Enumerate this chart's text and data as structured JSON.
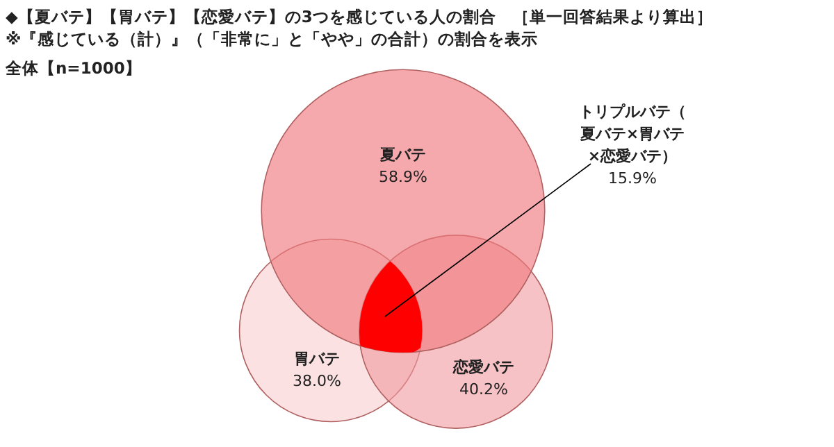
{
  "chart_data": {
    "type": "other",
    "title": "◆【夏バテ】【胃バテ】【恋愛バテ】の3つを感じている人の割合　［単一回答結果より算出］",
    "subtitle": "※『感じている（計）』（「非常に」と「やや」の合計）の割合を表示",
    "annotations": [
      "全体【n=1000】"
    ],
    "categories": [
      "夏バテ",
      "胃バテ",
      "恋愛バテ",
      "トリプルバテ（夏バテ×胃バテ×恋愛バテ）"
    ],
    "values": [
      58.9,
      38.0,
      40.2,
      15.9
    ],
    "value_labels": [
      "58.9%",
      "38.0%",
      "40.2%",
      "15.9%"
    ],
    "colors": [
      "#f07b80",
      "#f8c8c8",
      "#f29a9e",
      "#ff0000"
    ]
  }
}
